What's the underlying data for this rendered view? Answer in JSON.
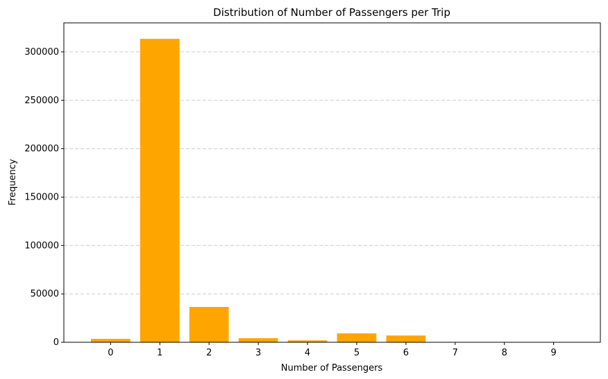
{
  "chart_data": {
    "type": "bar",
    "title": "Distribution of Number of Passengers per Trip",
    "xlabel": "Number of Passengers",
    "ylabel": "Frequency",
    "categories": [
      "0",
      "1",
      "2",
      "3",
      "4",
      "5",
      "6",
      "7",
      "8",
      "9"
    ],
    "values": [
      3500,
      313500,
      36500,
      4200,
      2000,
      9200,
      7000,
      0,
      0,
      0
    ],
    "ylim": [
      0,
      330000
    ],
    "yticks": [
      "0",
      "50000",
      "100000",
      "150000",
      "200000",
      "250000",
      "300000"
    ],
    "grid": "y-dashed",
    "bar_color": "#FFA500",
    "grid_color": "#cccccc"
  }
}
